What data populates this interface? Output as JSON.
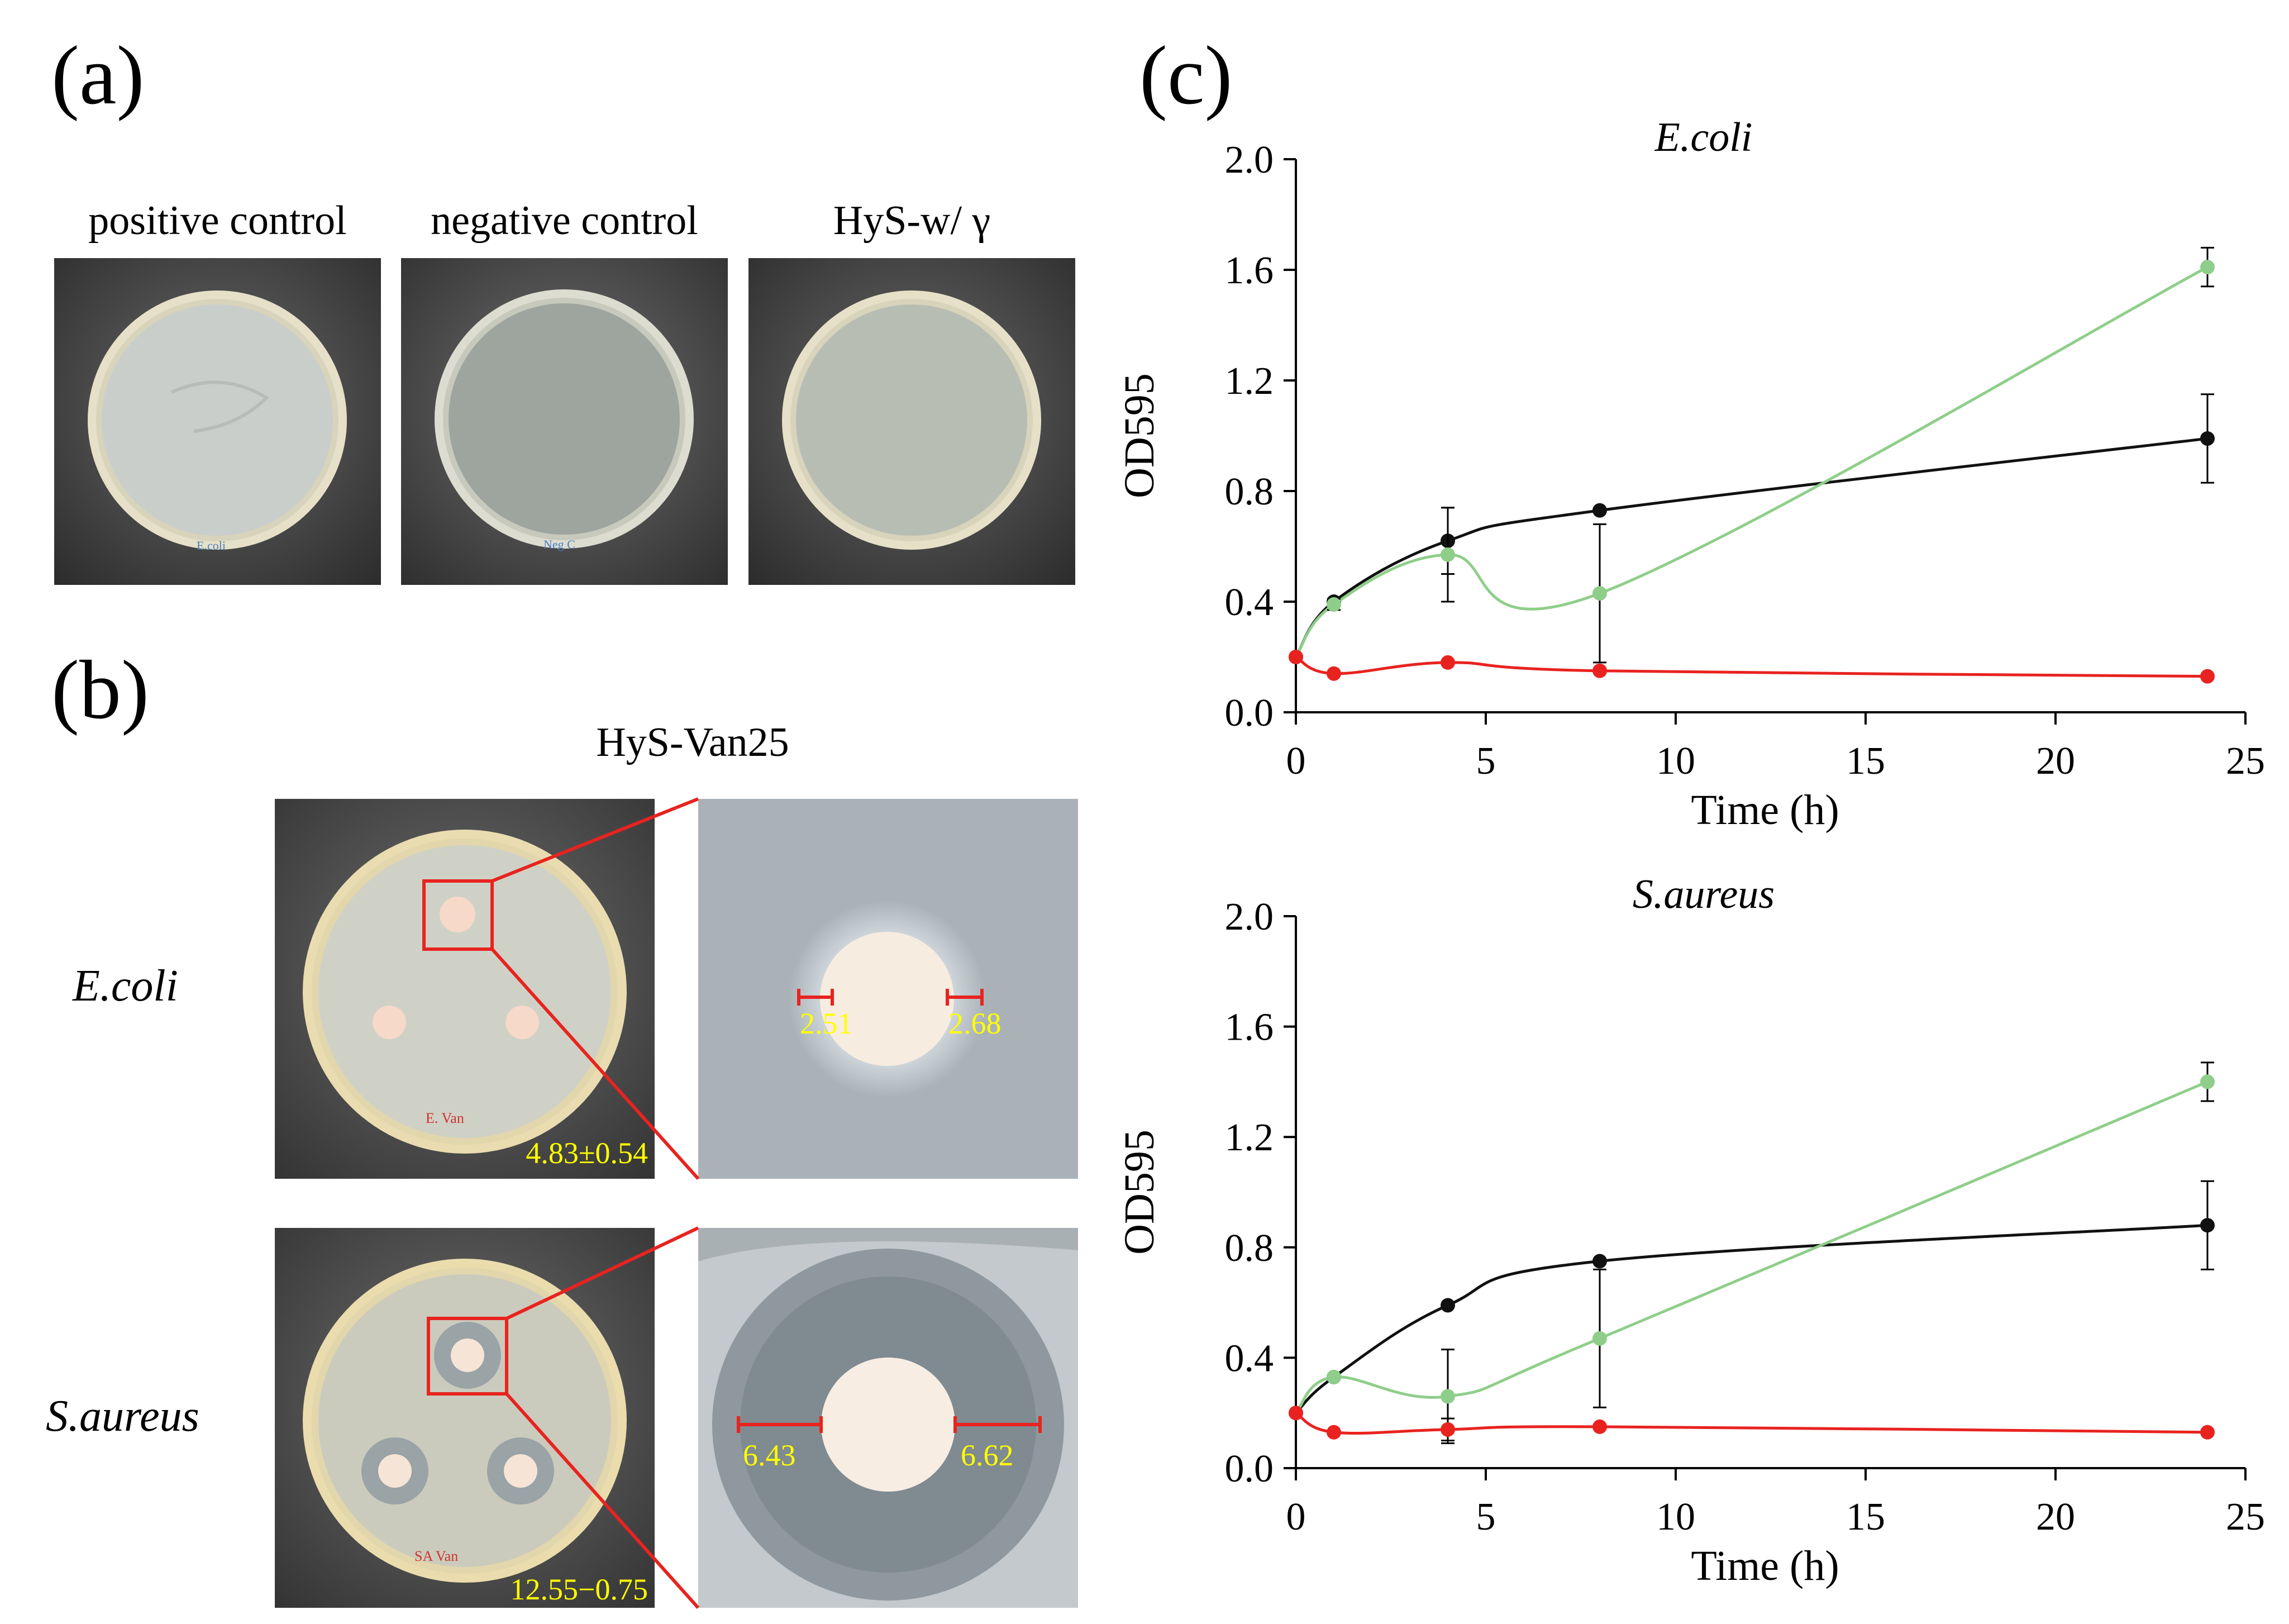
{
  "panels": {
    "a": "(a)",
    "b": "(b)",
    "c": "(c)"
  },
  "panel_a": {
    "captions": [
      "positive control",
      "negative control",
      "HyS-w/ γ"
    ],
    "dish_labels": [
      "E.coli",
      "Neg C",
      ""
    ]
  },
  "panel_b": {
    "title": "HyS-Van25",
    "rows": [
      {
        "species": "E.coli",
        "dish_label": "E. Van",
        "zone_total": "4.83±0.54",
        "zone_left": "2.51",
        "zone_right": "2.68"
      },
      {
        "species": "S.aureus",
        "dish_label": "SA Van",
        "zone_total": "12.55−0.75",
        "zone_left": "6.43",
        "zone_right": "6.62"
      }
    ]
  },
  "colors": {
    "black": "#111111",
    "green": "#8fce8a",
    "red": "#e8231f",
    "label_yellow": "#ffff00",
    "zoom_line": "#e8231f"
  },
  "chart_data": [
    {
      "type": "line",
      "title": "E.coli",
      "xlabel": "Time (h)",
      "ylabel": "OD595",
      "xlim": [
        0,
        25
      ],
      "ylim": [
        0,
        2.0
      ],
      "xticks": [
        "0",
        "5",
        "10",
        "15",
        "20",
        "25"
      ],
      "yticks": [
        "0.0",
        "0.4",
        "0.8",
        "1.2",
        "1.6",
        "2.0"
      ],
      "x": [
        0,
        1,
        4,
        8,
        24
      ],
      "series": [
        {
          "color": "#111111",
          "values": [
            0.2,
            0.4,
            0.62,
            0.73,
            0.99
          ],
          "errors": [
            0,
            0,
            0.12,
            0,
            0.16
          ]
        },
        {
          "color": "#8fce8a",
          "values": [
            0.2,
            0.39,
            0.57,
            0.43,
            1.61
          ],
          "errors": [
            0,
            0.02,
            0.17,
            0.25,
            0.07
          ]
        },
        {
          "color": "#e8231f",
          "values": [
            0.2,
            0.14,
            0.18,
            0.15,
            0.13
          ],
          "errors": [
            0,
            0,
            0,
            0,
            0
          ]
        }
      ]
    },
    {
      "type": "line",
      "title": "S.aureus",
      "xlabel": "Time (h)",
      "ylabel": "OD595",
      "xlim": [
        0,
        25
      ],
      "ylim": [
        0,
        2.0
      ],
      "xticks": [
        "0",
        "5",
        "10",
        "15",
        "20",
        "25"
      ],
      "yticks": [
        "0.0",
        "0.4",
        "0.8",
        "1.2",
        "1.6",
        "2.0"
      ],
      "x": [
        0,
        1,
        4,
        8,
        24
      ],
      "series": [
        {
          "color": "#111111",
          "values": [
            0.2,
            0.33,
            0.59,
            0.75,
            0.88
          ],
          "errors": [
            0,
            0,
            0,
            0,
            0.16
          ]
        },
        {
          "color": "#8fce8a",
          "values": [
            0.2,
            0.33,
            0.26,
            0.47,
            1.4
          ],
          "errors": [
            0,
            0,
            0.17,
            0.25,
            0.07
          ]
        },
        {
          "color": "#e8231f",
          "values": [
            0.2,
            0.13,
            0.14,
            0.15,
            0.13
          ],
          "errors": [
            0,
            0,
            0.04,
            0,
            0
          ]
        }
      ]
    }
  ]
}
